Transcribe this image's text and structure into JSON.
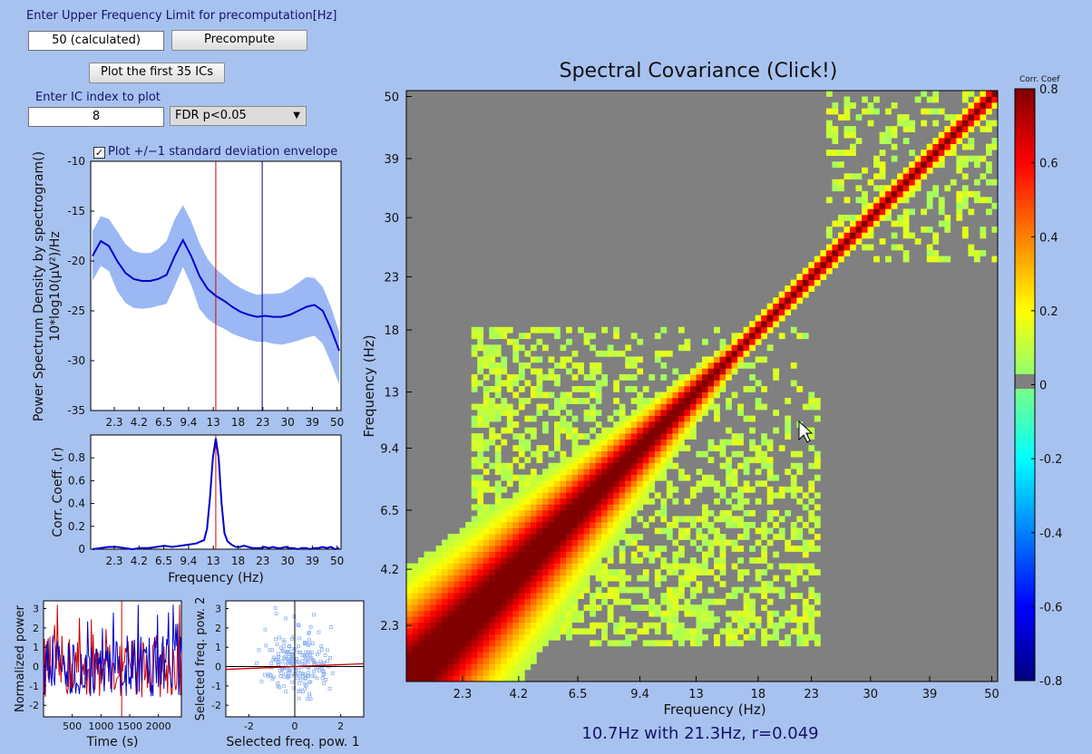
{
  "controls": {
    "upper_freq_label": "Enter Upper Frequency Limit for precomputation[Hz]",
    "upper_freq_value": "50 (calculated)",
    "precompute_button": "Precompute",
    "plot_ics_button": "Plot the first 35 ICs",
    "ic_index_label": "Enter IC index to plot",
    "ic_index_value": "8",
    "fdr_selected": "FDR p<0.05",
    "std_envelope_label": "Plot +/−1 standard deviation envelope",
    "std_envelope_checked": true
  },
  "chart_data": [
    {
      "id": "psd",
      "type": "line",
      "title": "",
      "xlabel": "",
      "ylabel": "Power Spectrum Density by spectrogram()",
      "ylabel2": "10*log10(μV²)/Hz",
      "x_tick_labels": [
        "2.3",
        "4.2",
        "6.5",
        "9.4",
        "13",
        "18",
        "23",
        "30",
        "39",
        "50"
      ],
      "y_ticks": [
        -10,
        -15,
        -20,
        -25,
        -30,
        -35
      ],
      "ylim": [
        -35,
        -10
      ],
      "series": [
        {
          "name": "mean",
          "values": [
            -19.5,
            -18,
            -18.5,
            -20,
            -21.2,
            -21.8,
            -22,
            -22,
            -21.8,
            -21.4,
            -19.5,
            -17.9,
            -19.5,
            -21.5,
            -22.8,
            -23.5,
            -24,
            -24.6,
            -25.1,
            -25.4,
            -25.6,
            -25.5,
            -25.6,
            -25.6,
            -25.4,
            -25,
            -24.6,
            -24.4,
            -25,
            -26.8,
            -29
          ]
        },
        {
          "name": "upper",
          "values": [
            -17,
            -15.5,
            -15.8,
            -17,
            -18.3,
            -19,
            -19.2,
            -19.2,
            -18.8,
            -18,
            -15.8,
            -14.4,
            -16,
            -18.2,
            -19.8,
            -20.8,
            -21.5,
            -22.2,
            -22.7,
            -23.1,
            -23.4,
            -23.3,
            -23.3,
            -23.2,
            -22.8,
            -22.2,
            -21.6,
            -21.7,
            -22.6,
            -24.6,
            -27.1
          ]
        },
        {
          "name": "lower",
          "values": [
            -22,
            -20.5,
            -21,
            -23,
            -24.2,
            -24.7,
            -24.8,
            -24.7,
            -24.5,
            -24.3,
            -22.5,
            -20.6,
            -22.4,
            -24.8,
            -25.8,
            -26.4,
            -26.8,
            -27.3,
            -27.6,
            -27.9,
            -28.1,
            -28.1,
            -28.3,
            -28.4,
            -28.2,
            -28,
            -27.7,
            -27.5,
            -28.3,
            -30.2,
            -32.4
          ]
        }
      ],
      "markers": [
        {
          "name": "red-marker",
          "x_index": 4.38
        },
        {
          "name": "blue-marker",
          "x_index": 6.16
        }
      ]
    },
    {
      "id": "corr",
      "type": "line",
      "xlabel": "Frequency (Hz)",
      "ylabel": "Corr. Coeff. (r)",
      "x_tick_labels": [
        "2.3",
        "4.2",
        "6.5",
        "9.4",
        "13",
        "18",
        "23",
        "30",
        "39",
        "50"
      ],
      "y_ticks": [
        0,
        0.2,
        0.4,
        0.6,
        0.8
      ],
      "ylim": [
        0,
        1
      ],
      "values": [
        0,
        0.01,
        0.02,
        0.02,
        0.01,
        0.0,
        0.01,
        0.01,
        0.02,
        0.03,
        0.02,
        0.03,
        0.04,
        0.05,
        0.08,
        0.18,
        0.45,
        0.8,
        0.97,
        0.8,
        0.4,
        0.14,
        0.07,
        0.04,
        0.02,
        0.02,
        0.03,
        0.02,
        0.01,
        0.01,
        0.01,
        0.02,
        0.01,
        0.02,
        0.01,
        0.01,
        0.02,
        0.01,
        0.01,
        0.0,
        0.01,
        0.01,
        0.0,
        0.01,
        0.01,
        0.02,
        0.01,
        0.02,
        0.0,
        0.01
      ],
      "marker_x_index": 4.38
    },
    {
      "id": "timeseries",
      "type": "line",
      "xlabel": "Time (s)",
      "ylabel": "Normalized power",
      "x_ticks": [
        500,
        1000,
        1500,
        2000
      ],
      "xlim": [
        0,
        2400
      ],
      "y_ticks": [
        3,
        2,
        1,
        0,
        -1,
        -2
      ],
      "ylim": [
        -2.6,
        3.4
      ],
      "series": [
        {
          "name": "freq1",
          "color": "#cc0000"
        },
        {
          "name": "freq2",
          "color": "#0000cc"
        }
      ],
      "marker_time": 1360
    },
    {
      "id": "scatter",
      "type": "scatter",
      "xlabel": "Selected freq. pow. 1",
      "ylabel": "Selected freq. pow. 2",
      "x_ticks": [
        -2,
        0,
        2
      ],
      "xlim": [
        -3,
        3
      ],
      "y_ticks": [
        3,
        2,
        1,
        0,
        -1,
        -2
      ],
      "ylim": [
        -2.6,
        3.4
      ],
      "fit_slope": 0.049
    },
    {
      "id": "covariance",
      "type": "heatmap",
      "title": "Spectral Covariance (Click!)",
      "xlabel": "Frequency (Hz)",
      "ylabel": "Frequency (Hz)",
      "tick_labels": [
        "2.3",
        "4.2",
        "6.5",
        "9.4",
        "13",
        "18",
        "23",
        "30",
        "39",
        "50"
      ],
      "n_bins": 100,
      "colorbar": {
        "title": "Corr. Coef",
        "ticks": [
          "0.8",
          "0.6",
          "0.4",
          "0.2",
          "0",
          "-0.2",
          "-0.4",
          "-0.6",
          "-0.8"
        ],
        "range": [
          -0.8,
          0.8
        ]
      },
      "caption": "10.7Hz with 21.3Hz, r=0.049"
    }
  ]
}
